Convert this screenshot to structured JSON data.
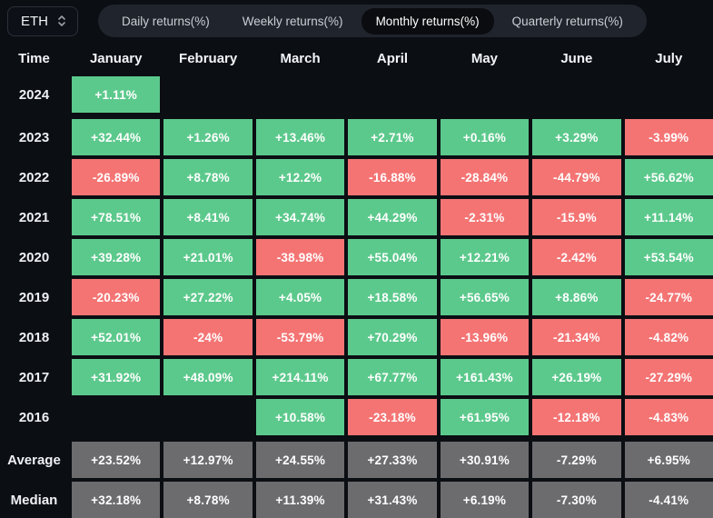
{
  "symbol_selector": {
    "value": "ETH",
    "icon": "updown-chevron"
  },
  "tabs": [
    {
      "label": "Daily returns(%)",
      "active": false
    },
    {
      "label": "Weekly returns(%)",
      "active": false
    },
    {
      "label": "Monthly returns(%)",
      "active": true
    },
    {
      "label": "Quarterly returns(%)",
      "active": false
    }
  ],
  "colors": {
    "positive": "#5cc98c",
    "negative": "#f47474",
    "neutral": "#6c6c6f",
    "background": "#0b0e13",
    "tabbar_bg": "#20242c",
    "tab_active_bg": "#0a0c10"
  },
  "chart_data": {
    "type": "heatmap",
    "title": "Monthly returns(%)",
    "columns": [
      "Time",
      "January",
      "February",
      "March",
      "April",
      "May",
      "June",
      "July"
    ],
    "rows": [
      {
        "label": "2024",
        "type": "year",
        "values": [
          "+1.11%",
          "",
          "",
          "",
          "",
          "",
          ""
        ]
      },
      {
        "label": "2023",
        "type": "year",
        "values": [
          "+32.44%",
          "+1.26%",
          "+13.46%",
          "+2.71%",
          "+0.16%",
          "+3.29%",
          "-3.99%"
        ]
      },
      {
        "label": "2022",
        "type": "year",
        "values": [
          "-26.89%",
          "+8.78%",
          "+12.2%",
          "-16.88%",
          "-28.84%",
          "-44.79%",
          "+56.62%"
        ]
      },
      {
        "label": "2021",
        "type": "year",
        "values": [
          "+78.51%",
          "+8.41%",
          "+34.74%",
          "+44.29%",
          "-2.31%",
          "-15.9%",
          "+11.14%"
        ]
      },
      {
        "label": "2020",
        "type": "year",
        "values": [
          "+39.28%",
          "+21.01%",
          "-38.98%",
          "+55.04%",
          "+12.21%",
          "-2.42%",
          "+53.54%"
        ]
      },
      {
        "label": "2019",
        "type": "year",
        "values": [
          "-20.23%",
          "+27.22%",
          "+4.05%",
          "+18.58%",
          "+56.65%",
          "+8.86%",
          "-24.77%"
        ]
      },
      {
        "label": "2018",
        "type": "year",
        "values": [
          "+52.01%",
          "-24%",
          "-53.79%",
          "+70.29%",
          "-13.96%",
          "-21.34%",
          "-4.82%"
        ]
      },
      {
        "label": "2017",
        "type": "year",
        "values": [
          "+31.92%",
          "+48.09%",
          "+214.11%",
          "+67.77%",
          "+161.43%",
          "+26.19%",
          "-27.29%"
        ]
      },
      {
        "label": "2016",
        "type": "year",
        "values": [
          "",
          "",
          "+10.58%",
          "-23.18%",
          "+61.95%",
          "-12.18%",
          "-4.83%"
        ]
      },
      {
        "label": "Average",
        "type": "summary",
        "values": [
          "+23.52%",
          "+12.97%",
          "+24.55%",
          "+27.33%",
          "+30.91%",
          "-7.29%",
          "+6.95%"
        ]
      },
      {
        "label": "Median",
        "type": "summary",
        "values": [
          "+32.18%",
          "+8.78%",
          "+11.39%",
          "+31.43%",
          "+6.19%",
          "-7.30%",
          "-4.41%"
        ]
      }
    ]
  }
}
